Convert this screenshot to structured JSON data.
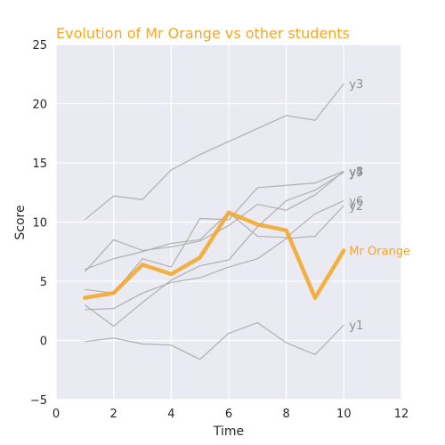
{
  "chart_data": {
    "type": "line",
    "title": "Evolution of Mr Orange vs other students",
    "xlabel": "Time",
    "ylabel": "Score",
    "xlim": [
      0,
      12
    ],
    "ylim": [
      -5,
      25
    ],
    "xticks": [
      "0",
      "2",
      "4",
      "6",
      "8",
      "10",
      "12"
    ],
    "yticks": [
      "−5",
      "0",
      "5",
      "10",
      "15",
      "20",
      "25"
    ],
    "grid": true,
    "legend": "none",
    "x": [
      1,
      2,
      3,
      4,
      5,
      6,
      7,
      8,
      9,
      10
    ],
    "highlight_color": "#f5a623",
    "background_color": "#eaeaf2",
    "muted_color": "#b0b0b0",
    "highlighted_series": {
      "name": "Mr Orange",
      "values": [
        3.6,
        4.0,
        6.4,
        5.6,
        7.0,
        10.8,
        9.8,
        9.3,
        3.6,
        7.6
      ]
    },
    "series": [
      {
        "name": "y1",
        "values": [
          -0.1,
          0.2,
          -0.3,
          -0.4,
          -1.6,
          0.6,
          1.5,
          -0.2,
          -1.2,
          1.3
        ]
      },
      {
        "name": "y2",
        "values": [
          2.6,
          2.7,
          4.0,
          4.9,
          5.3,
          6.2,
          6.9,
          8.6,
          8.8,
          11.4
        ]
      },
      {
        "name": "y3",
        "values": [
          10.2,
          12.2,
          11.9,
          14.4,
          15.7,
          16.8,
          17.9,
          19.0,
          18.6,
          21.7
        ]
      },
      {
        "name": "y4",
        "values": [
          5.8,
          8.5,
          7.6,
          7.9,
          8.4,
          9.7,
          11.5,
          11.0,
          12.3,
          14.3
        ]
      },
      {
        "name": "y5",
        "values": [
          4.3,
          4.0,
          6.9,
          6.2,
          10.3,
          10.2,
          12.9,
          13.1,
          13.3,
          14.3
        ]
      },
      {
        "name": "y6",
        "values": [
          6.0,
          6.9,
          7.5,
          8.2,
          8.5,
          10.8,
          8.8,
          8.7,
          10.7,
          11.8
        ]
      },
      {
        "name": "y7",
        "values": [
          3.0,
          1.2,
          3.2,
          5.1,
          6.3,
          6.8,
          9.6,
          11.8,
          12.7,
          14.2
        ]
      }
    ]
  }
}
